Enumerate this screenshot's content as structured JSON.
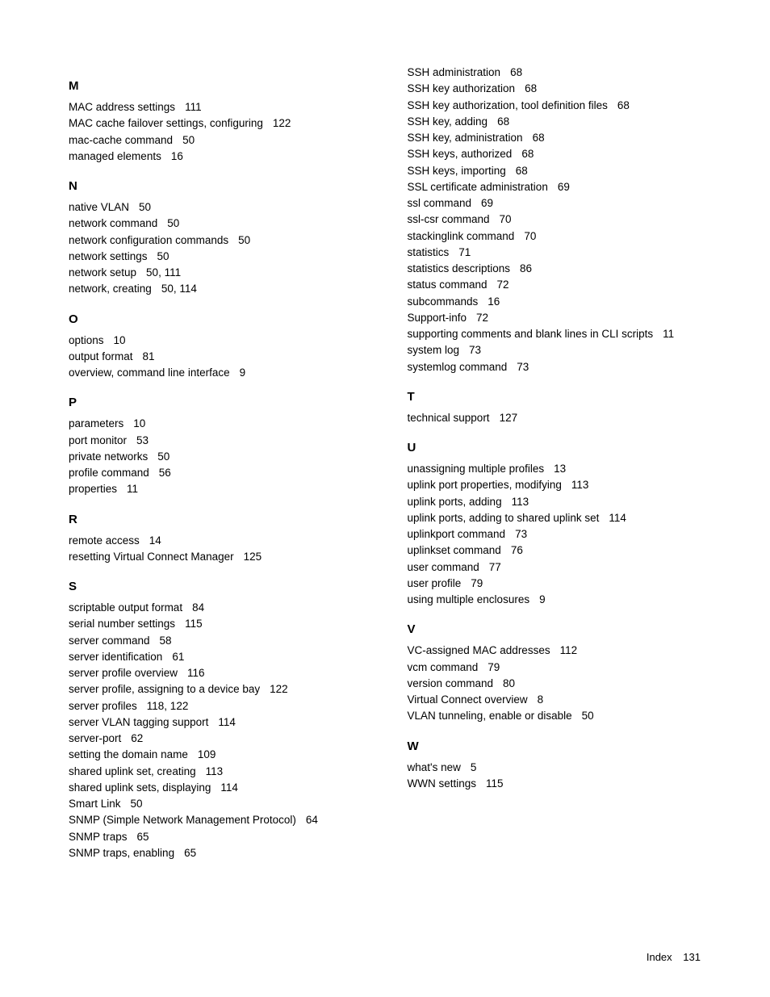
{
  "left_column": [
    {
      "heading": "M",
      "entries": [
        {
          "term": "MAC address settings",
          "pages": "111"
        },
        {
          "term": "MAC cache failover settings, configuring",
          "pages": "122"
        },
        {
          "term": "mac-cache command",
          "pages": "50"
        },
        {
          "term": "managed elements",
          "pages": "16"
        }
      ]
    },
    {
      "heading": "N",
      "entries": [
        {
          "term": "native VLAN",
          "pages": "50"
        },
        {
          "term": "network command",
          "pages": "50"
        },
        {
          "term": "network configuration commands",
          "pages": "50"
        },
        {
          "term": "network settings",
          "pages": "50"
        },
        {
          "term": "network setup",
          "pages": "50, 111"
        },
        {
          "term": "network, creating",
          "pages": "50, 114"
        }
      ]
    },
    {
      "heading": "O",
      "entries": [
        {
          "term": "options",
          "pages": "10"
        },
        {
          "term": "output format",
          "pages": "81"
        },
        {
          "term": "overview, command line interface",
          "pages": "9"
        }
      ]
    },
    {
      "heading": "P",
      "entries": [
        {
          "term": "parameters",
          "pages": "10"
        },
        {
          "term": "port monitor",
          "pages": "53"
        },
        {
          "term": "private networks",
          "pages": "50"
        },
        {
          "term": "profile command",
          "pages": "56"
        },
        {
          "term": "properties",
          "pages": "11"
        }
      ]
    },
    {
      "heading": "R",
      "entries": [
        {
          "term": "remote access",
          "pages": "14"
        },
        {
          "term": "resetting Virtual Connect Manager",
          "pages": "125"
        }
      ]
    },
    {
      "heading": "S",
      "entries": [
        {
          "term": "scriptable output format",
          "pages": "84"
        },
        {
          "term": "serial number settings",
          "pages": "115"
        },
        {
          "term": "server command",
          "pages": "58"
        },
        {
          "term": "server identification",
          "pages": "61"
        },
        {
          "term": "server profile overview",
          "pages": "116"
        },
        {
          "term": "server profile, assigning to a device bay",
          "pages": "122"
        },
        {
          "term": "server profiles",
          "pages": "118, 122"
        },
        {
          "term": "server VLAN tagging support",
          "pages": "114"
        },
        {
          "term": "server-port",
          "pages": "62"
        },
        {
          "term": "setting the domain name",
          "pages": "109"
        },
        {
          "term": "shared uplink set, creating",
          "pages": "113"
        },
        {
          "term": "shared uplink sets, displaying",
          "pages": "114"
        },
        {
          "term": "Smart Link",
          "pages": "50"
        },
        {
          "term": "SNMP (Simple Network Management Protocol)",
          "pages": "64"
        },
        {
          "term": "SNMP traps",
          "pages": "65"
        },
        {
          "term": "SNMP traps, enabling",
          "pages": "65"
        }
      ]
    }
  ],
  "right_column": [
    {
      "heading": "",
      "entries": [
        {
          "term": "SSH administration",
          "pages": "68"
        },
        {
          "term": "SSH key authorization",
          "pages": "68"
        },
        {
          "term": "SSH key authorization, tool definition files",
          "pages": "68"
        },
        {
          "term": "SSH key, adding",
          "pages": "68"
        },
        {
          "term": "SSH key, administration",
          "pages": "68"
        },
        {
          "term": "SSH keys, authorized",
          "pages": "68"
        },
        {
          "term": "SSH keys, importing",
          "pages": "68"
        },
        {
          "term": "SSL certificate administration",
          "pages": "69"
        },
        {
          "term": "ssl command",
          "pages": "69"
        },
        {
          "term": "ssl-csr command",
          "pages": "70"
        },
        {
          "term": "stackinglink command",
          "pages": "70"
        },
        {
          "term": "statistics",
          "pages": "71"
        },
        {
          "term": "statistics descriptions",
          "pages": "86"
        },
        {
          "term": "status command",
          "pages": "72"
        },
        {
          "term": "subcommands",
          "pages": "16"
        },
        {
          "term": "Support-info",
          "pages": "72"
        },
        {
          "term": "supporting comments and blank lines in CLI scripts",
          "pages": "11"
        },
        {
          "term": "system log",
          "pages": "73"
        },
        {
          "term": "systemlog command",
          "pages": "73"
        }
      ]
    },
    {
      "heading": "T",
      "entries": [
        {
          "term": "technical support",
          "pages": "127"
        }
      ]
    },
    {
      "heading": "U",
      "entries": [
        {
          "term": "unassigning multiple profiles",
          "pages": "13"
        },
        {
          "term": "uplink port properties, modifying",
          "pages": "113"
        },
        {
          "term": "uplink ports, adding",
          "pages": "113"
        },
        {
          "term": "uplink ports, adding to shared uplink set",
          "pages": "114"
        },
        {
          "term": "uplinkport command",
          "pages": "73"
        },
        {
          "term": "uplinkset command",
          "pages": "76"
        },
        {
          "term": "user command",
          "pages": "77"
        },
        {
          "term": "user profile",
          "pages": "79"
        },
        {
          "term": "using multiple enclosures",
          "pages": "9"
        }
      ]
    },
    {
      "heading": "V",
      "entries": [
        {
          "term": "VC-assigned MAC addresses",
          "pages": "112"
        },
        {
          "term": "vcm command",
          "pages": "79"
        },
        {
          "term": "version command",
          "pages": "80"
        },
        {
          "term": "Virtual Connect overview",
          "pages": "8"
        },
        {
          "term": "VLAN tunneling, enable or disable",
          "pages": "50"
        }
      ]
    },
    {
      "heading": "W",
      "entries": [
        {
          "term": "what's new",
          "pages": "5"
        },
        {
          "term": "WWN settings",
          "pages": "115"
        }
      ]
    }
  ],
  "footer": {
    "label": "Index",
    "page_number": "131"
  }
}
